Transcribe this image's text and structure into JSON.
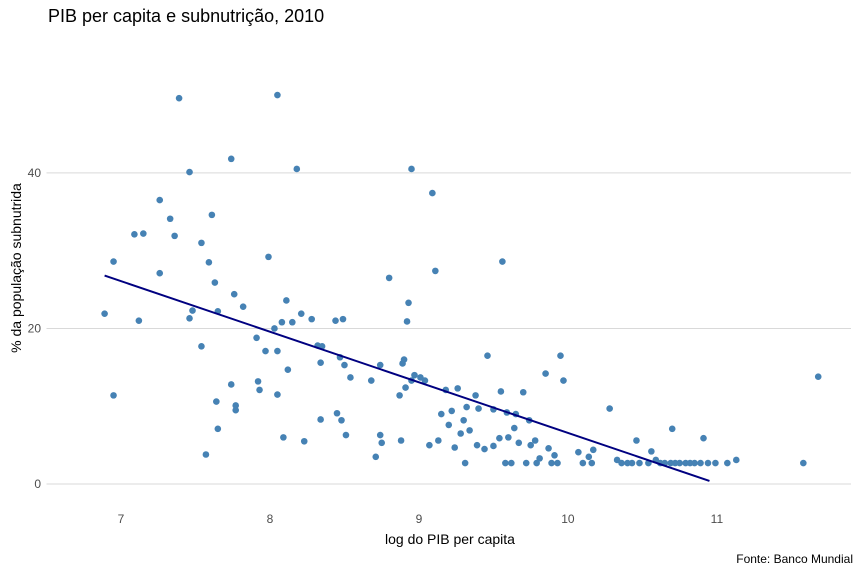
{
  "chart_data": {
    "type": "scatter",
    "title": "PIB per capita e subnutrição, 2010",
    "xlabel": "log do PIB per capita",
    "ylabel": "% da população subnutrida",
    "caption": "Fonte: Banco Mundial",
    "xlim": [
      6.5,
      11.9
    ],
    "ylim": [
      -3,
      52
    ],
    "xticks": [
      7,
      8,
      9,
      10,
      11
    ],
    "xtick_labels": [
      "7",
      "8",
      "9",
      "10",
      "11"
    ],
    "yticks": [
      0,
      20,
      40
    ],
    "ytick_labels": [
      "0",
      "20",
      "40"
    ],
    "grid": "horizontal major",
    "point_color": "#4682B4",
    "line_color": "#000080",
    "trend_line": {
      "x": [
        6.89,
        10.95
      ],
      "y": [
        26.8,
        0.4
      ]
    },
    "points": [
      [
        6.89,
        21.9
      ],
      [
        6.95,
        28.6
      ],
      [
        6.95,
        11.4
      ],
      [
        7.09,
        32.1
      ],
      [
        7.15,
        32.2
      ],
      [
        7.12,
        21.0
      ],
      [
        7.26,
        36.5
      ],
      [
        7.26,
        27.1
      ],
      [
        7.33,
        34.1
      ],
      [
        7.36,
        31.9
      ],
      [
        7.39,
        49.6
      ],
      [
        7.46,
        40.1
      ],
      [
        7.46,
        21.3
      ],
      [
        7.48,
        22.3
      ],
      [
        7.54,
        31.0
      ],
      [
        7.54,
        17.7
      ],
      [
        7.57,
        3.8
      ],
      [
        7.59,
        28.5
      ],
      [
        7.61,
        34.6
      ],
      [
        7.63,
        25.9
      ],
      [
        7.64,
        10.6
      ],
      [
        7.65,
        22.2
      ],
      [
        7.65,
        7.1
      ],
      [
        7.74,
        41.8
      ],
      [
        7.74,
        12.8
      ],
      [
        7.76,
        24.4
      ],
      [
        7.77,
        9.5
      ],
      [
        7.77,
        10.1
      ],
      [
        7.82,
        22.8
      ],
      [
        7.91,
        18.8
      ],
      [
        7.92,
        13.2
      ],
      [
        7.93,
        12.1
      ],
      [
        7.97,
        17.1
      ],
      [
        7.99,
        29.2
      ],
      [
        8.03,
        20.0
      ],
      [
        8.05,
        11.5
      ],
      [
        8.05,
        50.0
      ],
      [
        8.05,
        17.1
      ],
      [
        8.08,
        20.8
      ],
      [
        8.09,
        6.0
      ],
      [
        8.11,
        23.6
      ],
      [
        8.12,
        14.7
      ],
      [
        8.15,
        20.8
      ],
      [
        8.18,
        40.5
      ],
      [
        8.21,
        21.9
      ],
      [
        8.23,
        5.5
      ],
      [
        8.28,
        21.2
      ],
      [
        8.32,
        17.8
      ],
      [
        8.34,
        8.3
      ],
      [
        8.34,
        15.6
      ],
      [
        8.35,
        17.7
      ],
      [
        8.44,
        21.0
      ],
      [
        8.45,
        9.1
      ],
      [
        8.47,
        16.3
      ],
      [
        8.48,
        8.2
      ],
      [
        8.49,
        21.2
      ],
      [
        8.5,
        15.3
      ],
      [
        8.51,
        6.3
      ],
      [
        8.54,
        13.7
      ],
      [
        8.68,
        13.3
      ],
      [
        8.71,
        3.5
      ],
      [
        8.74,
        15.3
      ],
      [
        8.74,
        6.3
      ],
      [
        8.75,
        5.3
      ],
      [
        8.8,
        26.5
      ],
      [
        8.87,
        11.4
      ],
      [
        8.88,
        5.6
      ],
      [
        8.89,
        15.5
      ],
      [
        8.9,
        16.0
      ],
      [
        8.91,
        12.4
      ],
      [
        8.92,
        20.9
      ],
      [
        8.93,
        23.3
      ],
      [
        8.95,
        40.5
      ],
      [
        8.95,
        13.3
      ],
      [
        8.97,
        14.0
      ],
      [
        9.01,
        13.7
      ],
      [
        9.04,
        13.3
      ],
      [
        9.07,
        5.0
      ],
      [
        9.09,
        37.4
      ],
      [
        9.11,
        27.4
      ],
      [
        9.13,
        5.6
      ],
      [
        9.15,
        9.0
      ],
      [
        9.18,
        12.1
      ],
      [
        9.2,
        7.6
      ],
      [
        9.22,
        9.4
      ],
      [
        9.24,
        4.7
      ],
      [
        9.26,
        12.3
      ],
      [
        9.28,
        6.5
      ],
      [
        9.3,
        8.2
      ],
      [
        9.31,
        2.7
      ],
      [
        9.32,
        9.9
      ],
      [
        9.34,
        6.9
      ],
      [
        9.38,
        11.4
      ],
      [
        9.39,
        5.0
      ],
      [
        9.4,
        9.7
      ],
      [
        9.44,
        4.5
      ],
      [
        9.46,
        16.5
      ],
      [
        9.5,
        9.6
      ],
      [
        9.5,
        4.9
      ],
      [
        9.54,
        5.9
      ],
      [
        9.55,
        11.9
      ],
      [
        9.56,
        28.6
      ],
      [
        9.58,
        2.7
      ],
      [
        9.59,
        9.2
      ],
      [
        9.6,
        6.0
      ],
      [
        9.62,
        2.7
      ],
      [
        9.64,
        7.2
      ],
      [
        9.65,
        9.0
      ],
      [
        9.67,
        5.3
      ],
      [
        9.7,
        11.8
      ],
      [
        9.72,
        2.7
      ],
      [
        9.74,
        8.2
      ],
      [
        9.75,
        5.0
      ],
      [
        9.78,
        5.6
      ],
      [
        9.79,
        2.7
      ],
      [
        9.81,
        3.3
      ],
      [
        9.85,
        14.2
      ],
      [
        9.87,
        4.6
      ],
      [
        9.89,
        2.7
      ],
      [
        9.91,
        3.7
      ],
      [
        9.93,
        2.7
      ],
      [
        9.95,
        16.5
      ],
      [
        9.97,
        13.3
      ],
      [
        10.07,
        4.1
      ],
      [
        10.1,
        2.7
      ],
      [
        10.14,
        3.5
      ],
      [
        10.16,
        2.7
      ],
      [
        10.17,
        4.4
      ],
      [
        10.28,
        9.7
      ],
      [
        10.33,
        3.1
      ],
      [
        10.36,
        2.7
      ],
      [
        10.4,
        2.7
      ],
      [
        10.43,
        2.7
      ],
      [
        10.46,
        5.6
      ],
      [
        10.48,
        2.7
      ],
      [
        10.54,
        2.7
      ],
      [
        10.56,
        4.2
      ],
      [
        10.59,
        3.1
      ],
      [
        10.62,
        2.7
      ],
      [
        10.65,
        2.7
      ],
      [
        10.69,
        2.7
      ],
      [
        10.7,
        7.1
      ],
      [
        10.72,
        2.7
      ],
      [
        10.75,
        2.7
      ],
      [
        10.79,
        2.7
      ],
      [
        10.82,
        2.7
      ],
      [
        10.85,
        2.7
      ],
      [
        10.89,
        2.7
      ],
      [
        10.91,
        5.9
      ],
      [
        10.94,
        2.7
      ],
      [
        10.99,
        2.7
      ],
      [
        11.07,
        2.7
      ],
      [
        11.13,
        3.1
      ],
      [
        11.58,
        2.7
      ],
      [
        11.68,
        13.8
      ]
    ]
  }
}
